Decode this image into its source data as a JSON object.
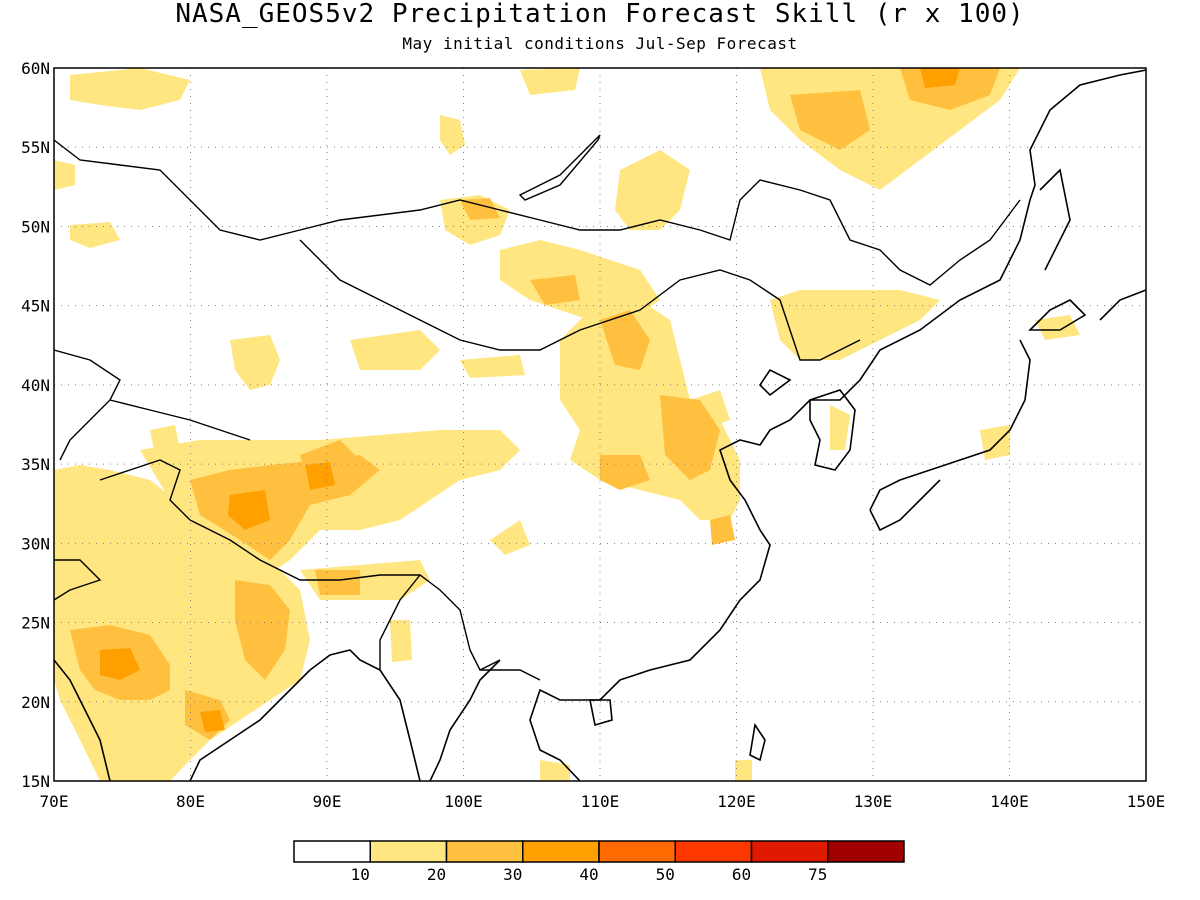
{
  "title": "NASA_GEOS5v2 Precipitation Forecast Skill (r x 100)",
  "subtitle": "May initial conditions  Jul-Sep Forecast",
  "map": {
    "lon_range": [
      70,
      150
    ],
    "lat_range": [
      15,
      60
    ],
    "lon_ticks": [
      "70E",
      "80E",
      "90E",
      "100E",
      "110E",
      "120E",
      "130E",
      "140E",
      "150E"
    ],
    "lat_ticks": [
      "15N",
      "20N",
      "25N",
      "30N",
      "35N",
      "40N",
      "45N",
      "50N",
      "55N",
      "60N"
    ],
    "grid": "dotted"
  },
  "colorbar": {
    "labels": [
      "10",
      "20",
      "30",
      "40",
      "50",
      "60",
      "75"
    ],
    "colors": [
      "#ffffff",
      "#ffe680",
      "#ffc040",
      "#ffa000",
      "#ff6a00",
      "#ff3800",
      "#e01a00",
      "#a00000"
    ]
  }
}
